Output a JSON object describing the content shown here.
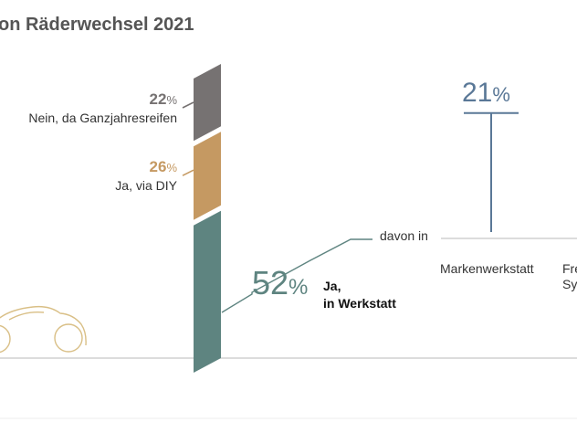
{
  "chart_data": {
    "type": "bar",
    "title": "on Räderwechsel 2021",
    "unit": "%",
    "stacked_bar": {
      "segments": [
        {
          "label": "Ja,",
          "label_line2": "in Werkstatt",
          "value": 52,
          "color": "#5E8480"
        },
        {
          "label": "Ja, via DIY",
          "label_line2": "",
          "value": 26,
          "color": "#C59962"
        },
        {
          "label": "Nein, da Ganzjahresreifen",
          "label_line2": "",
          "value": 22,
          "color": "#767272"
        }
      ]
    },
    "breakdown": {
      "connector_label": "davon in",
      "color": "#5A7897",
      "bars": [
        {
          "label": "Markenwerkstatt",
          "label_line2": "",
          "value": 21
        },
        {
          "label": "Fre",
          "label_line2": "Sy",
          "value": null
        }
      ]
    },
    "colors": {
      "title": "#555555",
      "axis": "#C8C8C8",
      "car_outline": "#D9BF86",
      "connector": "#5E8480"
    },
    "icons": {
      "car": "car-outline-icon"
    }
  }
}
